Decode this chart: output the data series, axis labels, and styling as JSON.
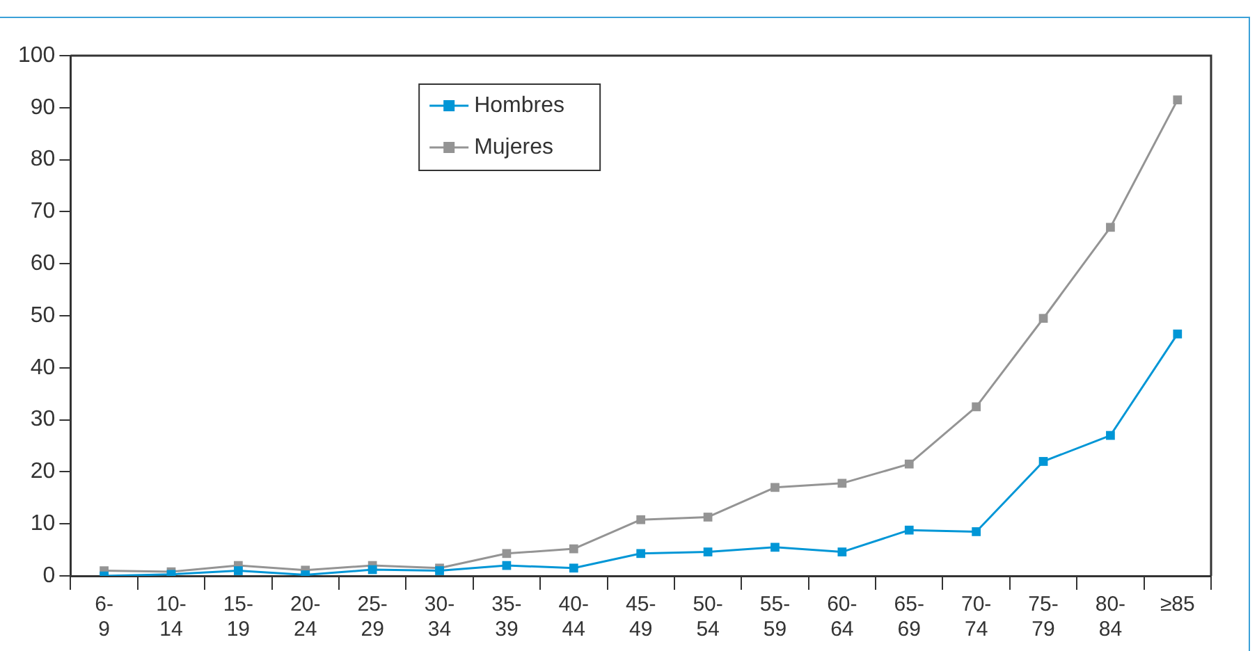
{
  "chart_data": {
    "type": "line",
    "categories": [
      "6-9",
      "10-14",
      "15-19",
      "20-24",
      "25-29",
      "30-34",
      "35-39",
      "40-44",
      "45-49",
      "50-54",
      "55-59",
      "60-64",
      "65-69",
      "70-74",
      "75-79",
      "80-84",
      "≥85"
    ],
    "series": [
      {
        "name": "Hombres",
        "color": "#0096d6",
        "values": [
          0,
          0.3,
          1,
          0.2,
          1.2,
          1,
          2,
          1.5,
          4.3,
          4.6,
          5.5,
          4.6,
          8.8,
          8.5,
          22,
          27,
          46.5
        ]
      },
      {
        "name": "Mujeres",
        "color": "#949494",
        "values": [
          1,
          0.8,
          2,
          1.1,
          2,
          1.5,
          4.3,
          5.2,
          10.8,
          11.3,
          17,
          17.8,
          21.5,
          32.5,
          49.5,
          67,
          91.5
        ]
      }
    ],
    "ylim": [
      0,
      100
    ],
    "yticks": [
      0,
      10,
      20,
      30,
      40,
      50,
      60,
      70,
      80,
      90,
      100
    ],
    "grid": false,
    "legend": "top",
    "marker": "square",
    "line_style": "solid"
  }
}
